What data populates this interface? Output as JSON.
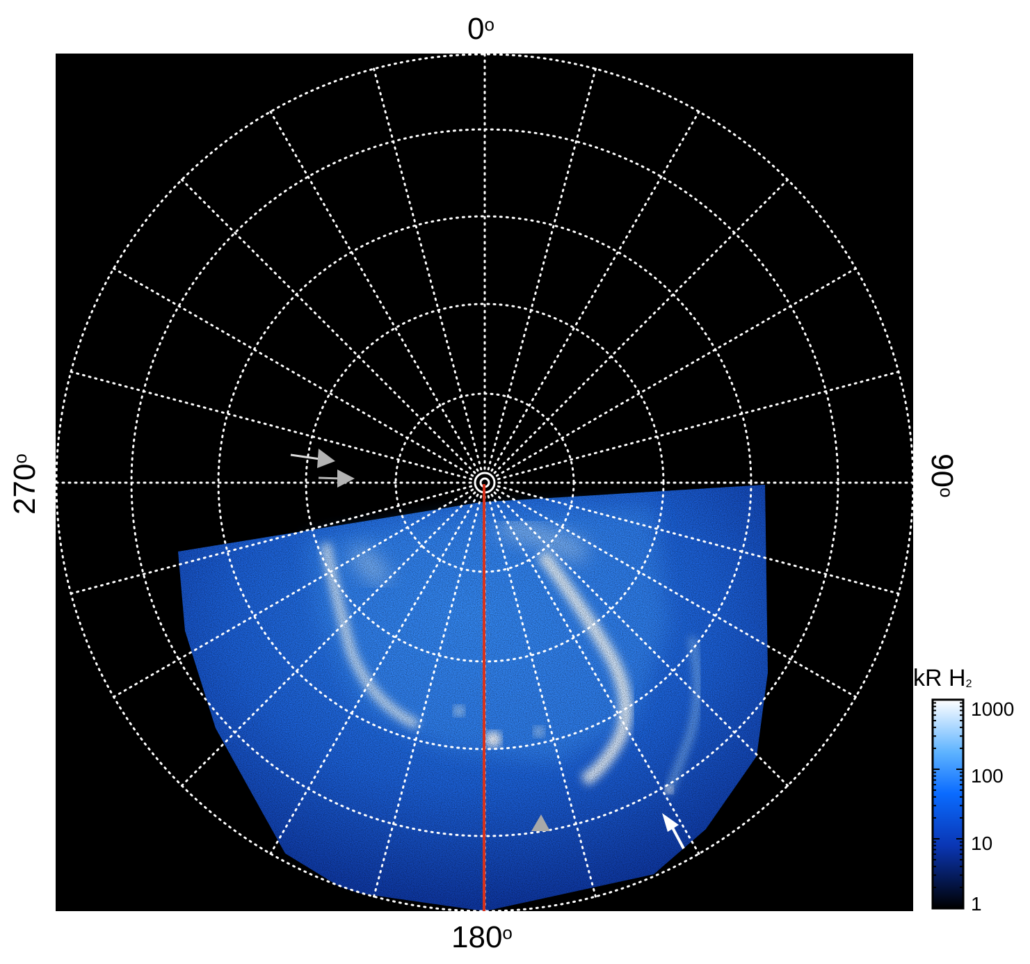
{
  "axis_labels": {
    "top": "0",
    "bottom": "180",
    "left": "270",
    "right": "90",
    "degree_symbol": "o"
  },
  "colorbar": {
    "title_main": "kR H",
    "title_sub": "2",
    "scale": "log",
    "ticks": [
      "1000",
      "100",
      "10",
      "1"
    ],
    "colors": [
      "#ffffff",
      "#5fb4ff",
      "#0a6bff",
      "#0a36b4",
      "#000000"
    ]
  },
  "grid": {
    "style": "dotted",
    "color": "#ffffff",
    "latitude_circles": 5,
    "meridian_spacing_deg": 15
  },
  "colors": {
    "background": "#000000",
    "meridian_line": "#d8321c",
    "arrow_white": "#ffffff",
    "arrow_gray": "#b4b4b4",
    "aurora_dim": "#0c3ea6",
    "aurora_mid": "#2a7ef5",
    "aurora_bright": "#e9f5ff"
  }
}
